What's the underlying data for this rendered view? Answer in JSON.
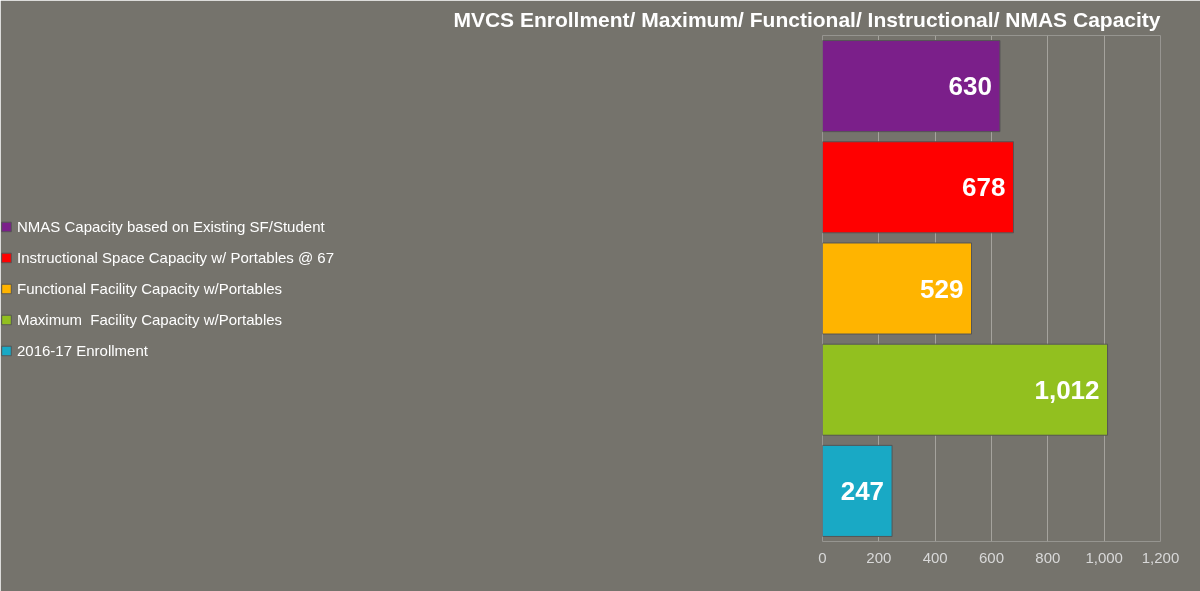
{
  "chart_data": {
    "type": "bar",
    "orientation": "horizontal",
    "title": "MVCS Enrollment/ Maximum/ Functional/ Instructional/ NMAS Capacity",
    "categories": [
      null,
      null,
      null,
      null,
      null
    ],
    "series": [
      {
        "name": "NMAS Capacity based on Existing SF/Student",
        "color": "#7b1f8a",
        "values": [
          630,
          null,
          null,
          null,
          null
        ]
      },
      {
        "name": "Instructional Space Capacity w/ Portables @ 67",
        "color": "#ff0000",
        "values": [
          null,
          678,
          null,
          null,
          null
        ]
      },
      {
        "name": "Functional Facility Capacity w/Portables",
        "color": "#ffb400",
        "values": [
          null,
          null,
          529,
          null,
          null
        ]
      },
      {
        "name": "Maximum  Facility Capacity w/Portables",
        "color": "#92c01f",
        "values": [
          null,
          null,
          null,
          1012,
          null
        ],
        "value_labels": [
          null,
          null,
          null,
          "1,012",
          null
        ]
      },
      {
        "name": "2016-17 Enrollment",
        "color": "#19a9c5",
        "values": [
          null,
          null,
          null,
          null,
          247
        ]
      }
    ],
    "xlim": [
      0,
      1200
    ],
    "xticks": [
      0,
      200,
      400,
      600,
      800,
      {
        "value": 1000,
        "label": "1,000"
      },
      {
        "value": 1200,
        "label": "1,200"
      }
    ],
    "grid": "x",
    "legend": "left",
    "data_labels": true,
    "tick_labels": "x"
  }
}
